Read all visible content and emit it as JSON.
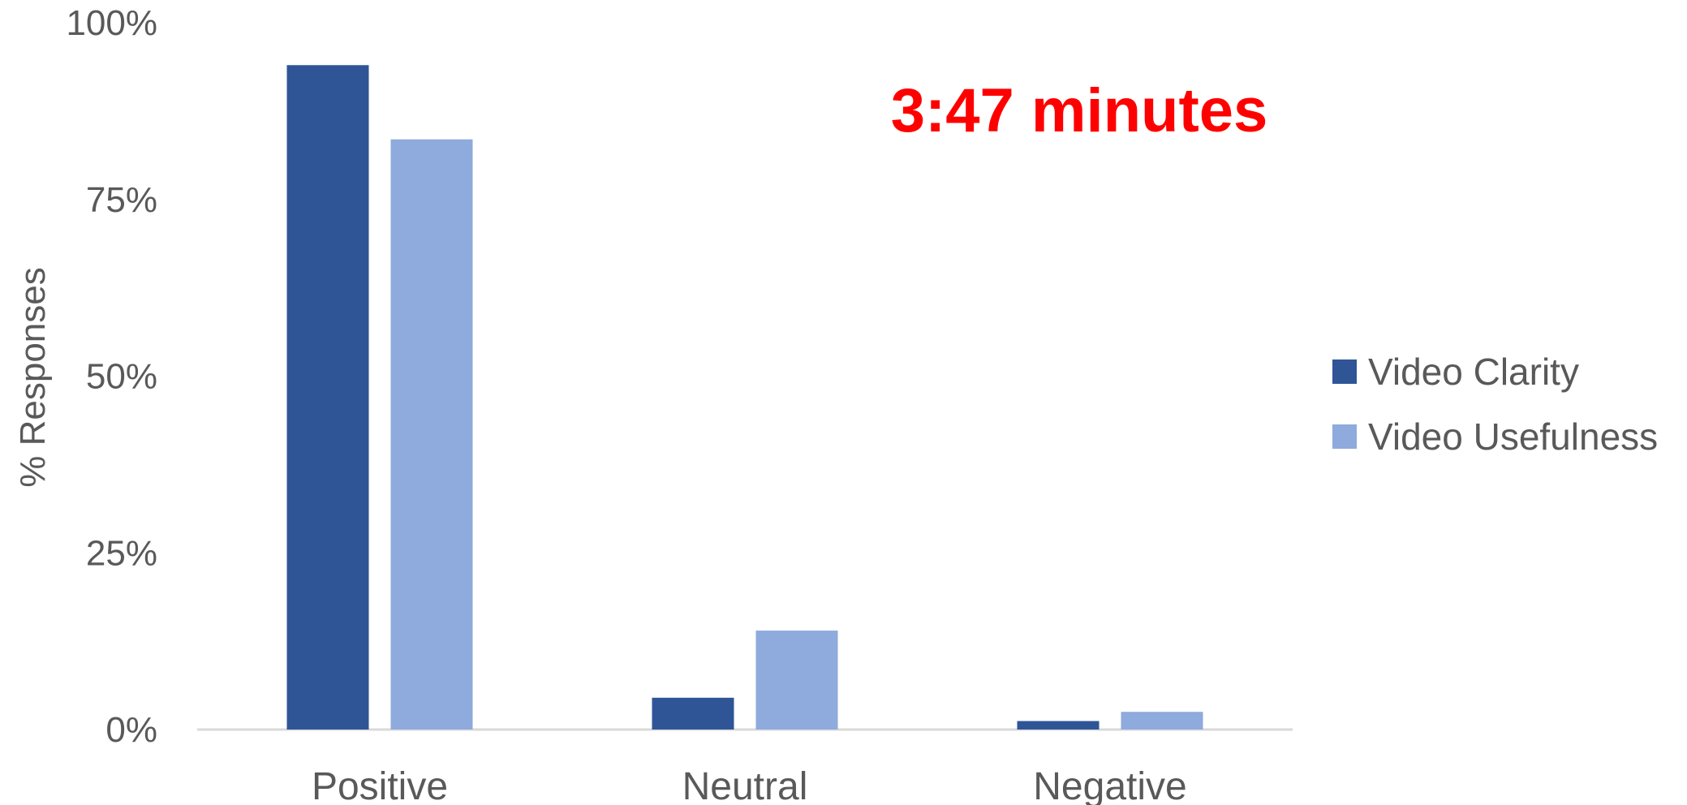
{
  "chart_data": {
    "type": "bar",
    "title": "",
    "xlabel": "",
    "ylabel": "% Responses",
    "ylim": [
      0,
      100
    ],
    "yticks": [
      "0%",
      "25%",
      "50%",
      "75%",
      "100%"
    ],
    "ytick_values": [
      0,
      25,
      50,
      75,
      100
    ],
    "categories": [
      "Positive",
      "Neutral",
      "Negative"
    ],
    "series": [
      {
        "name": "Video Clarity",
        "color": "#2F5597",
        "values": [
          94,
          4.5,
          1.2
        ]
      },
      {
        "name": "Video Usefulness",
        "color": "#8FAADC",
        "values": [
          83.5,
          14,
          2.5
        ]
      }
    ],
    "annotation": {
      "text": "3:47 minutes",
      "color": "#FF0000"
    },
    "grid": false,
    "legend_position": "right"
  }
}
